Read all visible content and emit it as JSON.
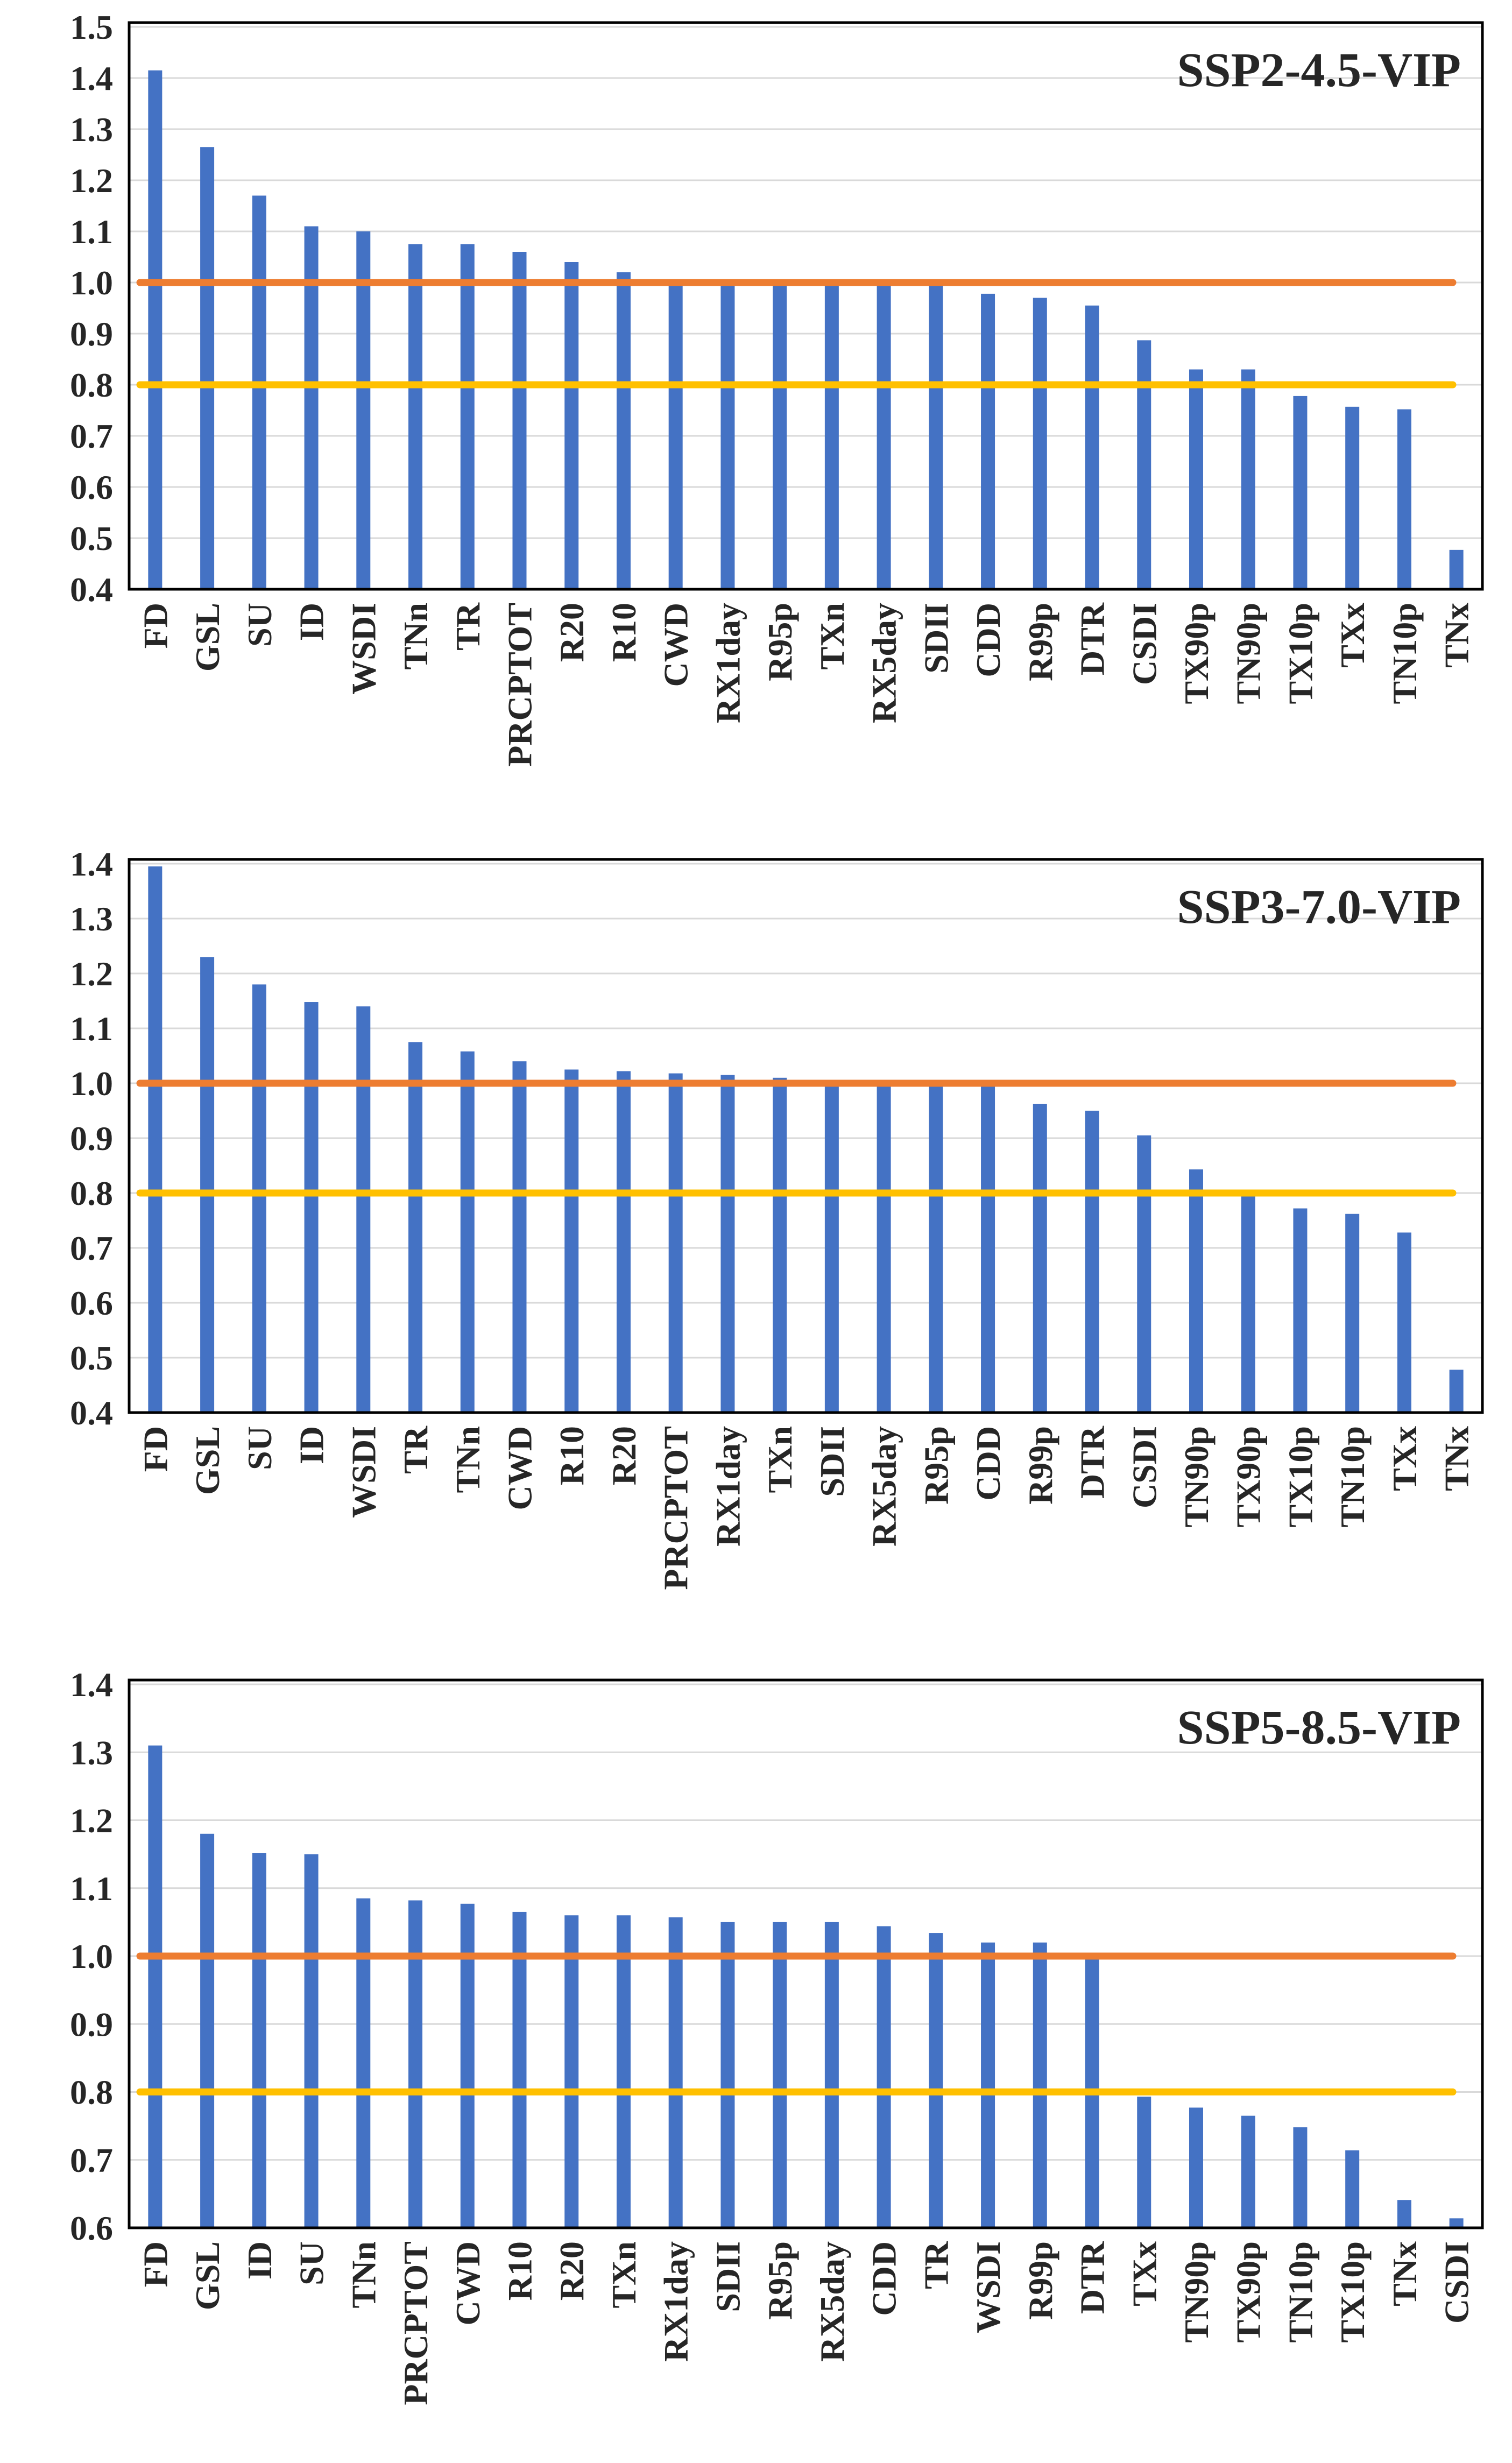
{
  "colors": {
    "bar": "#4472C4",
    "ref_high": "#ED7D31",
    "ref_low": "#FFC000",
    "grid": "#D9D9D9",
    "frame": "#000000"
  },
  "chart_data": [
    {
      "type": "bar",
      "title": "SSP2-4.5-VIP",
      "ylim": [
        0.4,
        1.5
      ],
      "yticks": [
        "0.4",
        "0.5",
        "0.6",
        "0.7",
        "0.8",
        "0.9",
        "1.0",
        "1.1",
        "1.2",
        "1.3",
        "1.4",
        "1.5"
      ],
      "grid": true,
      "categories": [
        "FD",
        "GSL",
        "SU",
        "ID",
        "WSDI",
        "TNn",
        "TR",
        "PRCPTOT",
        "R20",
        "R10",
        "CWD",
        "RX1day",
        "R95p",
        "TXn",
        "RX5day",
        "SDII",
        "CDD",
        "R99p",
        "DTR",
        "CSDI",
        "TX90p",
        "TN90p",
        "TX10p",
        "TXx",
        "TN10p",
        "TNx"
      ],
      "values": [
        1.415,
        1.265,
        1.17,
        1.11,
        1.1,
        1.075,
        1.075,
        1.06,
        1.04,
        1.02,
        1.005,
        1.0,
        1.0,
        1.0,
        1.0,
        1.0,
        0.978,
        0.97,
        0.955,
        0.887,
        0.83,
        0.83,
        0.778,
        0.757,
        0.752,
        0.477
      ],
      "reference_lines": [
        1.0,
        0.8
      ]
    },
    {
      "type": "bar",
      "title": "SSP3-7.0-VIP",
      "ylim": [
        0.4,
        1.4
      ],
      "yticks": [
        "0.4",
        "0.5",
        "0.6",
        "0.7",
        "0.8",
        "0.9",
        "1.0",
        "1.1",
        "1.2",
        "1.3",
        "1.4"
      ],
      "grid": true,
      "categories": [
        "FD",
        "GSL",
        "SU",
        "ID",
        "WSDI",
        "TR",
        "TNn",
        "CWD",
        "R10",
        "R20",
        "PRCPTOT",
        "RX1day",
        "TXn",
        "SDII",
        "RX5day",
        "R95p",
        "CDD",
        "R99p",
        "DTR",
        "CSDI",
        "TN90p",
        "TX90p",
        "TX10p",
        "TN10p",
        "TXx",
        "TNx"
      ],
      "values": [
        1.395,
        1.23,
        1.18,
        1.148,
        1.14,
        1.075,
        1.058,
        1.04,
        1.025,
        1.022,
        1.018,
        1.015,
        1.01,
        1.0,
        1.0,
        1.0,
        1.0,
        0.962,
        0.95,
        0.905,
        0.843,
        0.8,
        0.772,
        0.762,
        0.728,
        0.478
      ],
      "reference_lines": [
        1.0,
        0.8
      ]
    },
    {
      "type": "bar",
      "title": "SSP5-8.5-VIP",
      "ylim": [
        0.6,
        1.4
      ],
      "yticks": [
        "0.6",
        "0.7",
        "0.8",
        "0.9",
        "1.0",
        "1.1",
        "1.2",
        "1.3",
        "1.4"
      ],
      "grid": true,
      "categories": [
        "FD",
        "GSL",
        "ID",
        "SU",
        "TNn",
        "PRCPTOT",
        "CWD",
        "R10",
        "R20",
        "TXn",
        "RX1day",
        "SDII",
        "R95p",
        "RX5day",
        "CDD",
        "TR",
        "WSDI",
        "R99p",
        "DTR",
        "TXx",
        "TN90p",
        "TX90p",
        "TN10p",
        "TX10p",
        "TNx",
        "CSDI"
      ],
      "values": [
        1.31,
        1.18,
        1.152,
        1.15,
        1.085,
        1.082,
        1.077,
        1.065,
        1.06,
        1.06,
        1.057,
        1.05,
        1.05,
        1.05,
        1.044,
        1.034,
        1.02,
        1.02,
        1.0,
        0.793,
        0.777,
        0.765,
        0.748,
        0.714,
        0.641,
        0.614
      ],
      "reference_lines": [
        1.0,
        0.8
      ]
    }
  ]
}
